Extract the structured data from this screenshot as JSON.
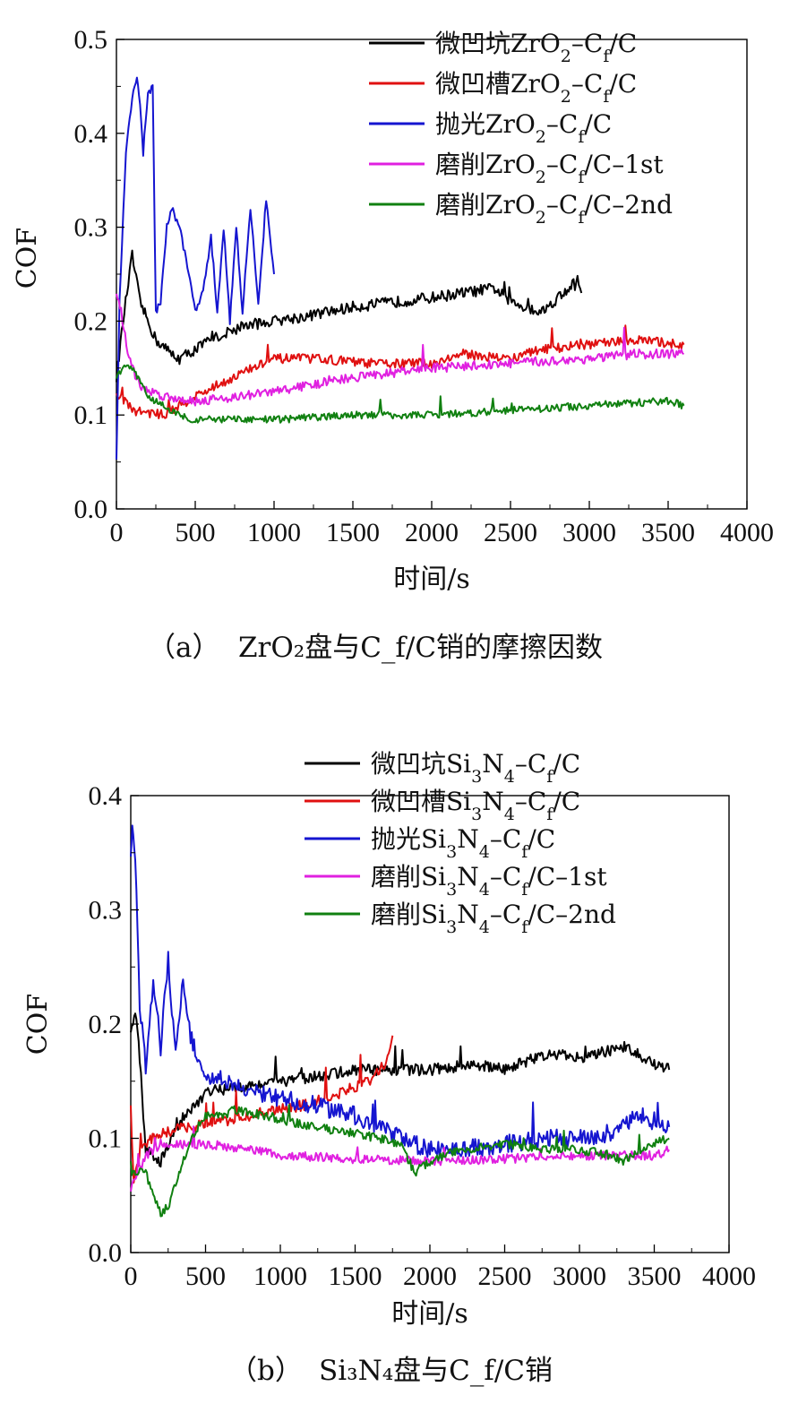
{
  "chart_data": [
    {
      "type": "line",
      "caption": {
        "prefix": "（a）",
        "main": "ZrO₂盘与C_f/C销的摩擦因数"
      },
      "xlabel": "时间/s",
      "ylabel": "COF",
      "xlim": [
        0,
        4000
      ],
      "ylim": [
        0.0,
        0.5
      ],
      "xticks": [
        "0",
        "500",
        "1000",
        "1500",
        "2000",
        "2500",
        "3000",
        "3500",
        "4000"
      ],
      "yticks": [
        "0.0",
        "0.1",
        "0.2",
        "0.3",
        "0.4",
        "0.5"
      ],
      "legend_position": "top-right",
      "series": [
        {
          "name": "微凹坑ZrO2–Cf/C",
          "color": "#000000",
          "noise": 0.006,
          "x": [
            0,
            50,
            100,
            150,
            250,
            350,
            400,
            600,
            800,
            1000,
            1200,
            1500,
            2000,
            2400,
            2500,
            2700,
            2800,
            2900,
            2950
          ],
          "y": [
            0.14,
            0.21,
            0.27,
            0.22,
            0.18,
            0.165,
            0.16,
            0.18,
            0.195,
            0.2,
            0.205,
            0.215,
            0.225,
            0.235,
            0.22,
            0.21,
            0.225,
            0.24,
            0.23
          ]
        },
        {
          "name": "微凹槽ZrO2–Cf/C",
          "color": "#e01010",
          "noise": 0.005,
          "x": [
            0,
            30,
            100,
            300,
            500,
            800,
            1000,
            1300,
            1600,
            2000,
            2200,
            2500,
            2700,
            3000,
            3300,
            3600
          ],
          "y": [
            0.12,
            0.12,
            0.105,
            0.1,
            0.12,
            0.145,
            0.16,
            0.16,
            0.155,
            0.155,
            0.165,
            0.16,
            0.17,
            0.175,
            0.18,
            0.175
          ]
        },
        {
          "name": "抛光ZrO2–Cf/C",
          "color": "#1515d0",
          "noise": 0.004,
          "x": [
            0,
            20,
            60,
            100,
            130,
            150,
            170,
            200,
            230,
            250,
            280,
            320,
            350,
            400,
            450,
            500,
            550,
            600,
            640,
            680,
            720,
            760,
            800,
            850,
            900,
            950,
            1000
          ],
          "y": [
            0.05,
            0.22,
            0.38,
            0.44,
            0.46,
            0.43,
            0.38,
            0.44,
            0.45,
            0.21,
            0.22,
            0.3,
            0.32,
            0.3,
            0.26,
            0.21,
            0.23,
            0.29,
            0.21,
            0.3,
            0.2,
            0.3,
            0.21,
            0.32,
            0.22,
            0.33,
            0.25
          ]
        },
        {
          "name": "磨削ZrO2–Cf/C–1st",
          "color": "#e020e0",
          "noise": 0.005,
          "x": [
            0,
            30,
            80,
            150,
            300,
            500,
            800,
            1000,
            1500,
            2000,
            2500,
            3000,
            3300,
            3600
          ],
          "y": [
            0.23,
            0.21,
            0.16,
            0.13,
            0.12,
            0.115,
            0.12,
            0.125,
            0.14,
            0.15,
            0.155,
            0.16,
            0.165,
            0.165
          ]
        },
        {
          "name": "磨削ZrO2–Cf/C–2nd",
          "color": "#108010",
          "noise": 0.004,
          "x": [
            0,
            50,
            100,
            200,
            300,
            400,
            500,
            700,
            1000,
            1500,
            2000,
            2500,
            3000,
            3500,
            3600
          ],
          "y": [
            0.14,
            0.15,
            0.15,
            0.12,
            0.11,
            0.1,
            0.095,
            0.095,
            0.095,
            0.1,
            0.1,
            0.105,
            0.11,
            0.115,
            0.11
          ]
        }
      ]
    },
    {
      "type": "line",
      "caption": {
        "prefix": "（b）",
        "main": "Si₃N₄盘与C_f/C销"
      },
      "xlabel": "时间/s",
      "ylabel": "COF",
      "xlim": [
        0,
        4000
      ],
      "ylim": [
        0.0,
        0.4
      ],
      "xticks": [
        "0",
        "500",
        "1000",
        "1500",
        "2000",
        "2500",
        "3000",
        "3500",
        "4000"
      ],
      "yticks": [
        "0.0",
        "0.1",
        "0.2",
        "0.3",
        "0.4"
      ],
      "legend_position": "top-right",
      "series": [
        {
          "name": "微凹坑Si3N4–Cf/C",
          "color": "#000000",
          "noise": 0.005,
          "x": [
            0,
            30,
            60,
            100,
            200,
            300,
            500,
            700,
            1000,
            1300,
            1500,
            1800,
            2000,
            2300,
            2500,
            2800,
            3000,
            3300,
            3500,
            3600
          ],
          "y": [
            0.19,
            0.21,
            0.17,
            0.09,
            0.08,
            0.11,
            0.14,
            0.145,
            0.15,
            0.155,
            0.16,
            0.16,
            0.16,
            0.165,
            0.16,
            0.175,
            0.17,
            0.18,
            0.165,
            0.16
          ]
        },
        {
          "name": "微凹槽Si3N4–Cf/C",
          "color": "#e01010",
          "noise": 0.005,
          "x": [
            0,
            20,
            50,
            100,
            200,
            400,
            600,
            800,
            1000,
            1200,
            1400,
            1600,
            1700,
            1750
          ],
          "y": [
            0.13,
            0.06,
            0.08,
            0.095,
            0.105,
            0.11,
            0.115,
            0.12,
            0.125,
            0.13,
            0.14,
            0.15,
            0.165,
            0.19
          ]
        },
        {
          "name": "抛光Si3N4–Cf/C",
          "color": "#1515d0",
          "noise": 0.008,
          "x": [
            0,
            10,
            30,
            60,
            100,
            150,
            200,
            250,
            300,
            350,
            400,
            500,
            600,
            800,
            1000,
            1200,
            1500,
            1800,
            2000,
            2200,
            2500,
            2800,
            3000,
            3200,
            3300,
            3400,
            3500,
            3600
          ],
          "y": [
            0.35,
            0.38,
            0.34,
            0.22,
            0.16,
            0.24,
            0.18,
            0.26,
            0.17,
            0.24,
            0.19,
            0.15,
            0.15,
            0.14,
            0.135,
            0.13,
            0.12,
            0.1,
            0.09,
            0.09,
            0.095,
            0.1,
            0.1,
            0.105,
            0.11,
            0.12,
            0.115,
            0.11
          ]
        },
        {
          "name": "磨削Si3N4–Cf/C–1st",
          "color": "#e020e0",
          "noise": 0.004,
          "x": [
            0,
            50,
            100,
            200,
            300,
            500,
            800,
            1000,
            1500,
            2000,
            2500,
            3000,
            3500,
            3600
          ],
          "y": [
            0.055,
            0.07,
            0.085,
            0.095,
            0.095,
            0.095,
            0.09,
            0.085,
            0.082,
            0.08,
            0.082,
            0.085,
            0.085,
            0.09
          ]
        },
        {
          "name": "磨削Si3N4–Cf/C–2nd",
          "color": "#108010",
          "noise": 0.004,
          "x": [
            0,
            100,
            150,
            200,
            250,
            300,
            400,
            500,
            600,
            700,
            900,
            1200,
            1500,
            1800,
            1900,
            2000,
            2200,
            2500,
            2800,
            3000,
            3200,
            3300,
            3400,
            3600
          ],
          "y": [
            0.07,
            0.07,
            0.05,
            0.035,
            0.04,
            0.06,
            0.1,
            0.12,
            0.12,
            0.125,
            0.12,
            0.11,
            0.105,
            0.095,
            0.07,
            0.08,
            0.09,
            0.095,
            0.09,
            0.09,
            0.085,
            0.08,
            0.09,
            0.1
          ]
        }
      ]
    }
  ]
}
